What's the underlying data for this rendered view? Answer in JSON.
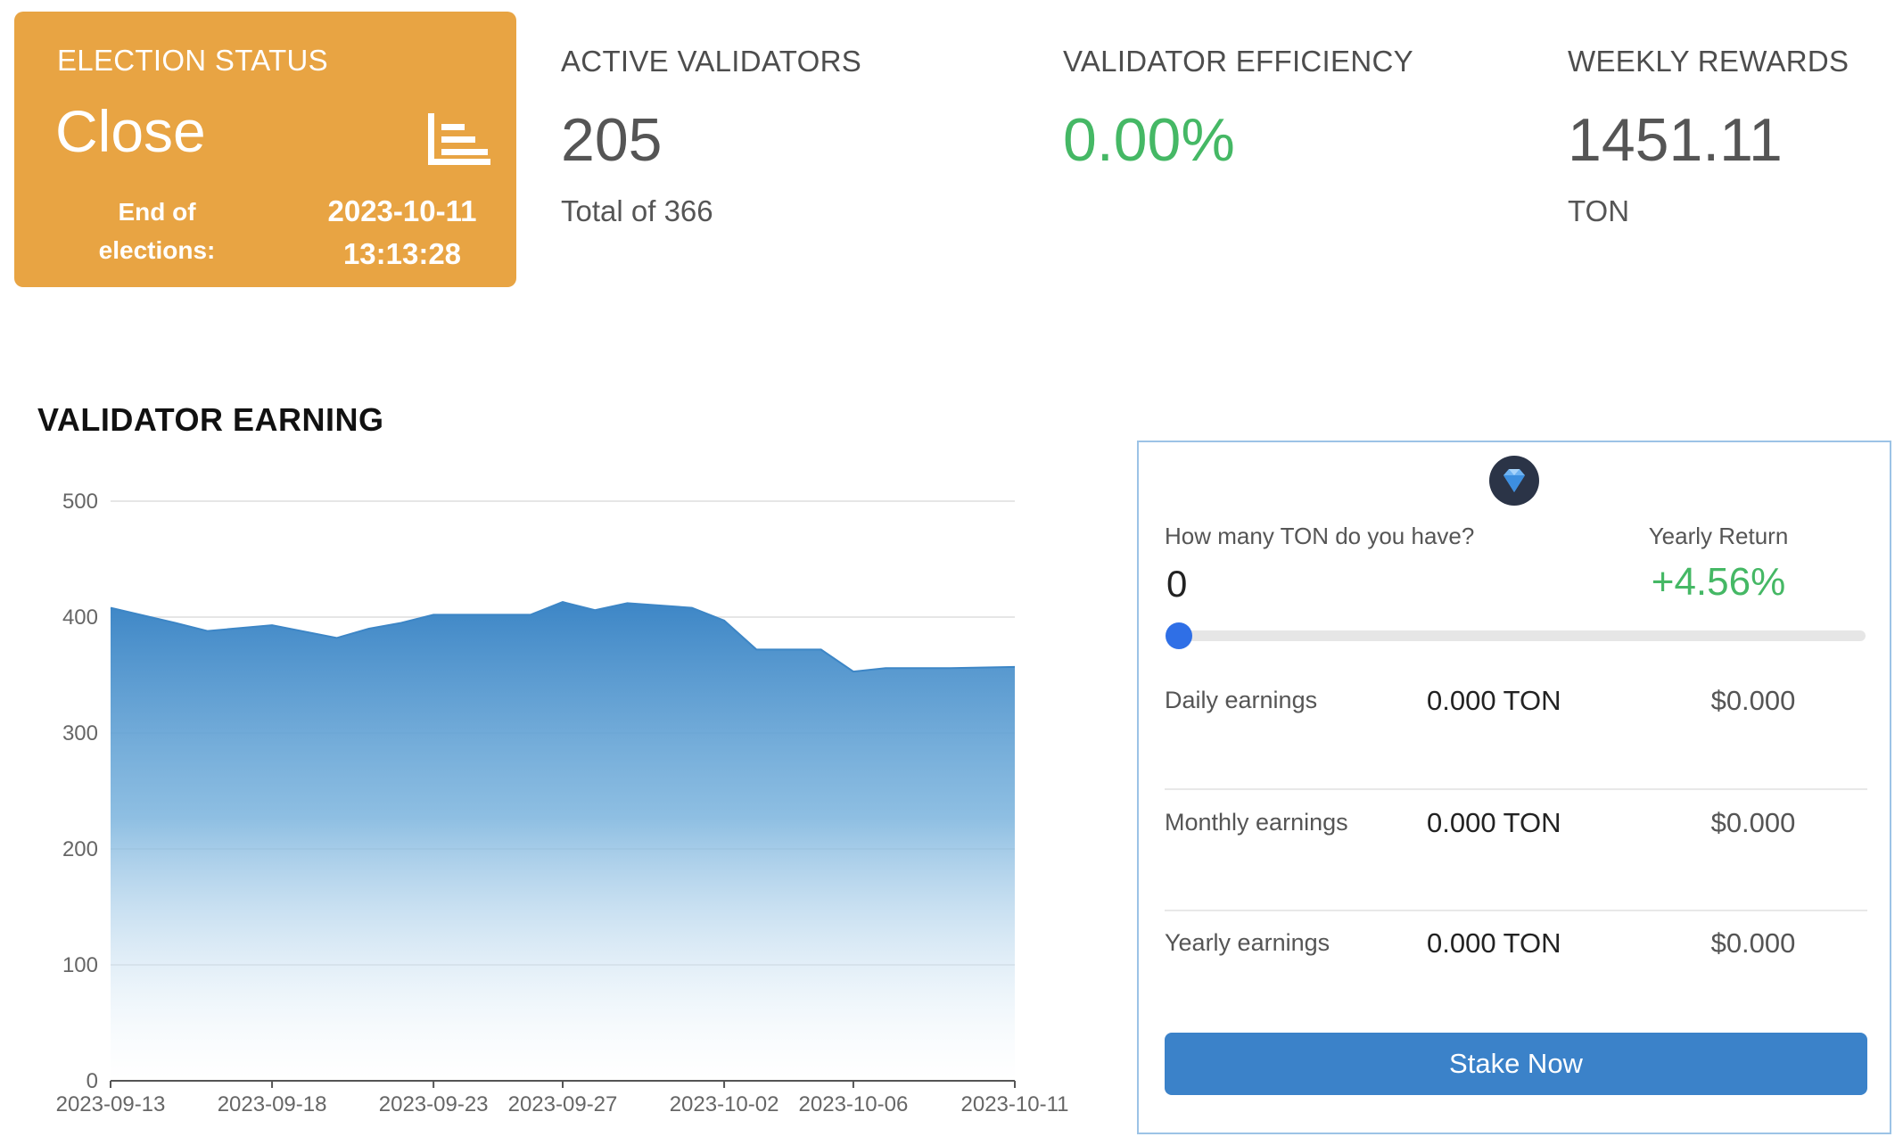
{
  "election": {
    "label": "ELECTION STATUS",
    "status": "Close",
    "end_label_line1": "End of",
    "end_label_line2": "elections:",
    "end_date": "2023-10-11",
    "end_time": "13:13:28",
    "icon": "chart-list-icon",
    "color": "#e8a443"
  },
  "stats": {
    "active_validators": {
      "label": "ACTIVE VALIDATORS",
      "value": "205",
      "sub": "Total of 366"
    },
    "validator_efficiency": {
      "label": "VALIDATOR EFFICIENCY",
      "value": "0.00%",
      "color": "#45b865"
    },
    "weekly_rewards": {
      "label": "WEEKLY REWARDS",
      "value": "1451.11",
      "sub": "TON"
    }
  },
  "earning_chart": {
    "title": "VALIDATOR EARNING"
  },
  "chart_data": {
    "type": "area",
    "title": "VALIDATOR EARNING",
    "x": [
      "2023-09-13",
      "2023-09-15",
      "2023-09-16",
      "2023-09-18",
      "2023-09-20",
      "2023-09-21",
      "2023-09-22",
      "2023-09-23",
      "2023-09-25",
      "2023-09-26",
      "2023-09-27",
      "2023-09-28",
      "2023-09-29",
      "2023-10-01",
      "2023-10-02",
      "2023-10-03",
      "2023-10-05",
      "2023-10-06",
      "2023-10-07",
      "2023-10-09",
      "2023-10-11"
    ],
    "values": [
      408,
      395,
      388,
      393,
      382,
      390,
      395,
      402,
      402,
      402,
      413,
      406,
      412,
      408,
      397,
      372,
      372,
      353,
      356,
      356,
      357
    ],
    "tick_labels": [
      "2023-09-13",
      "2023-09-18",
      "2023-09-23",
      "2023-09-27",
      "2023-10-02",
      "2023-10-06",
      "2023-10-11"
    ],
    "y_ticks": [
      0,
      100,
      200,
      300,
      400,
      500
    ],
    "ylim": [
      0,
      500
    ],
    "grid": true,
    "color": "#3d86c6"
  },
  "calculator": {
    "icon": "ton-diamond-icon",
    "question": "How many TON do you have?",
    "input_value": "0",
    "yearly_return_label": "Yearly Return",
    "yearly_return_value": "+4.56%",
    "slider_value": 0,
    "rows": [
      {
        "label": "Daily earnings",
        "ton": "0.000 TON",
        "usd": "$0.000"
      },
      {
        "label": "Monthly earnings",
        "ton": "0.000 TON",
        "usd": "$0.000"
      },
      {
        "label": "Yearly earnings",
        "ton": "0.000 TON",
        "usd": "$0.000"
      }
    ],
    "stake_button": "Stake Now",
    "accent": "#3b82c9"
  }
}
